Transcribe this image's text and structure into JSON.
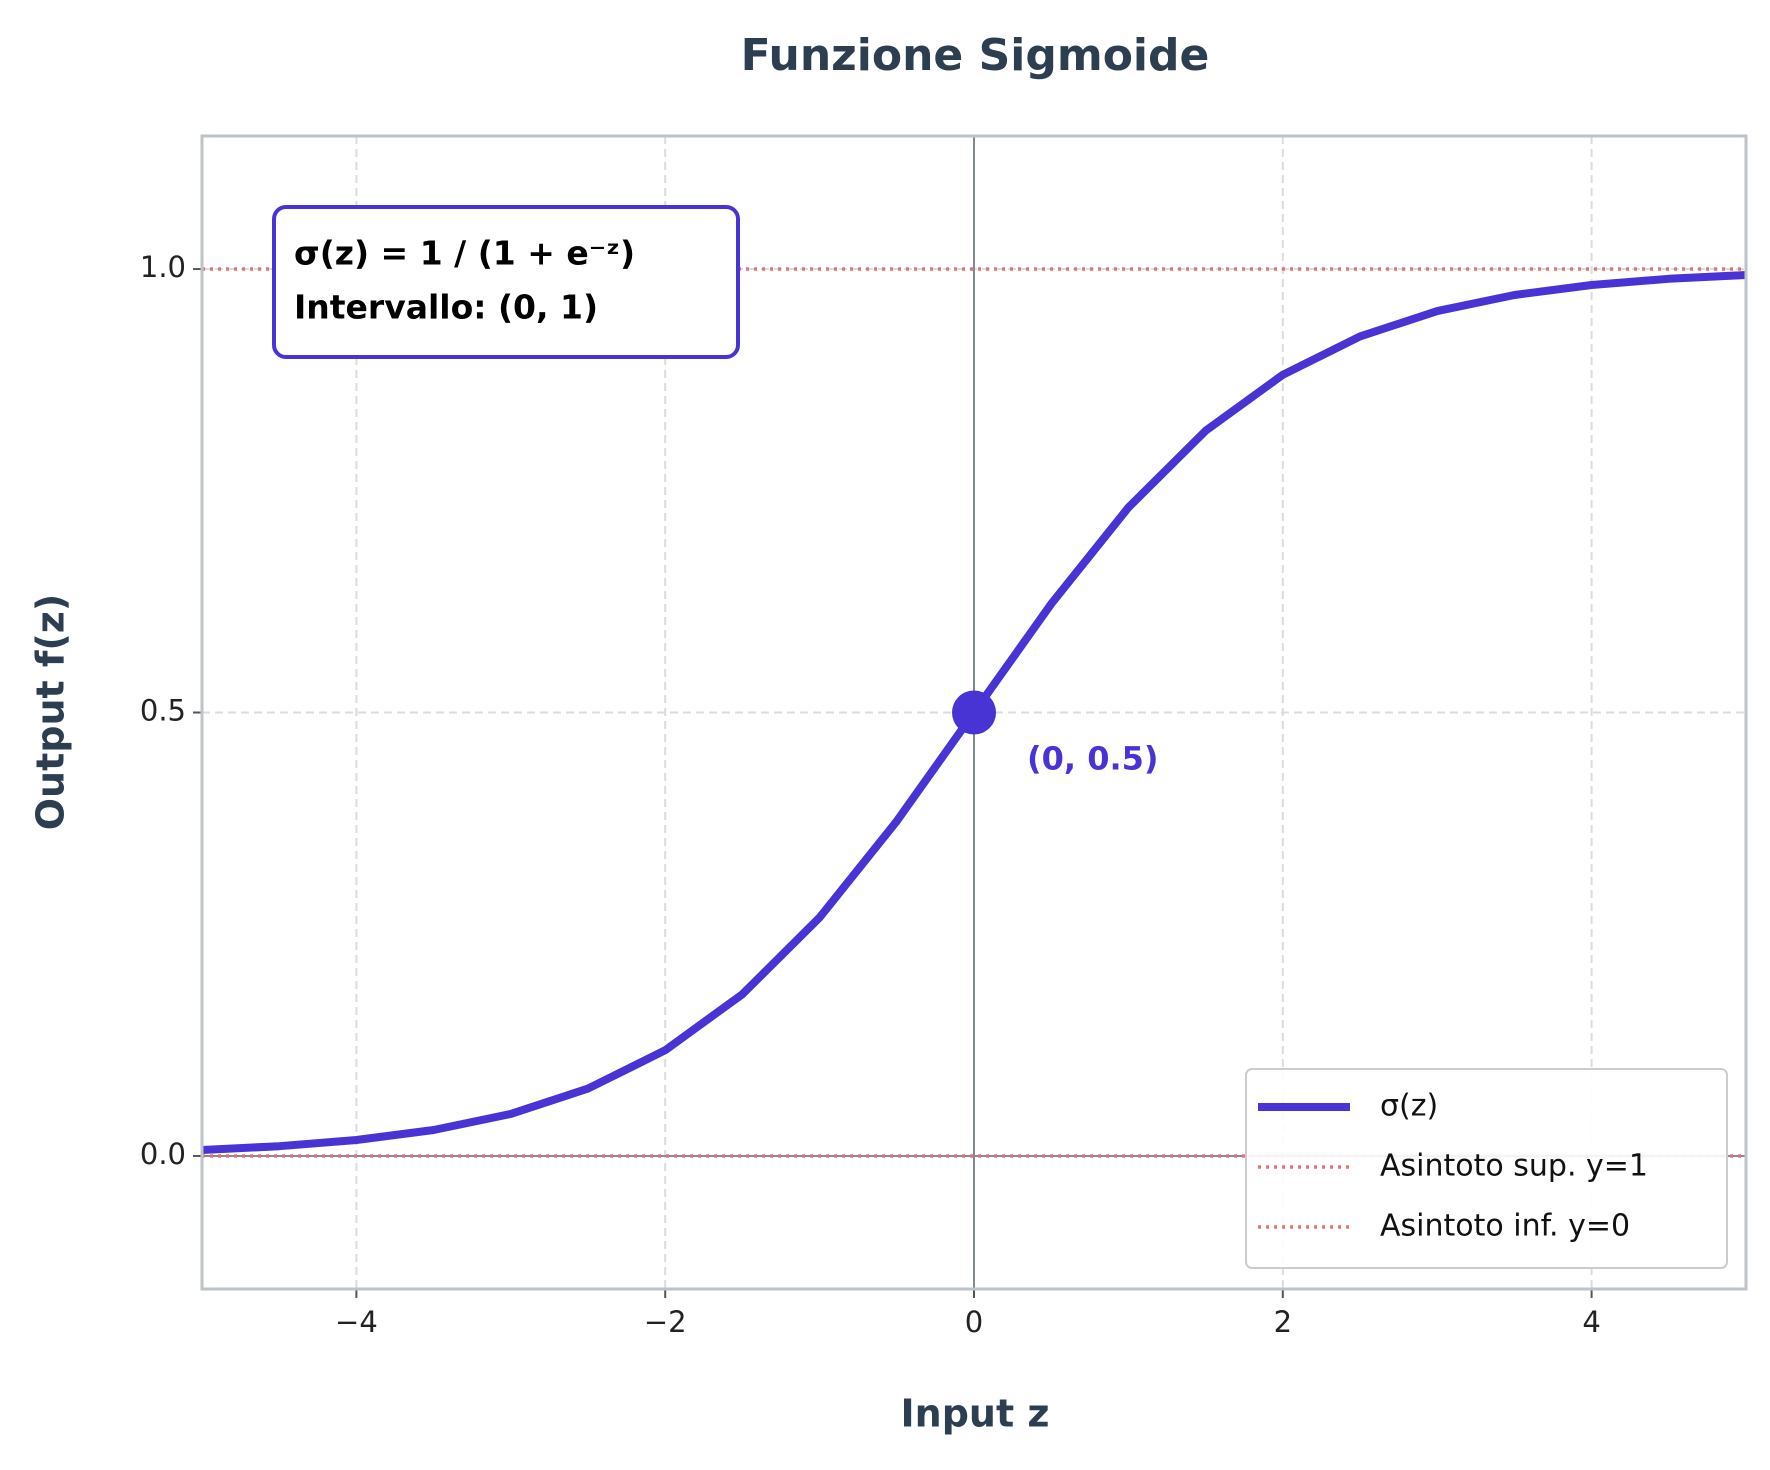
{
  "chart_data": {
    "type": "line",
    "title": "Funzione Sigmoide",
    "xlabel": "Input z",
    "ylabel": "Output f(z)",
    "x": [
      -5,
      -4.5,
      -4,
      -3.5,
      -3,
      -2.5,
      -2,
      -1.5,
      -1,
      -0.5,
      0,
      0.5,
      1,
      1.5,
      2,
      2.5,
      3,
      3.5,
      4,
      4.5,
      5
    ],
    "series": [
      {
        "name": "σ(z)",
        "color": "#4834d4",
        "values": [
          0.0067,
          0.011,
          0.018,
          0.0293,
          0.0474,
          0.0759,
          0.1192,
          0.1824,
          0.2689,
          0.3775,
          0.5,
          0.6225,
          0.7311,
          0.8176,
          0.8808,
          0.9241,
          0.9526,
          0.9707,
          0.982,
          0.989,
          0.9933
        ]
      }
    ],
    "reference_lines": [
      {
        "name": "Asintoto sup. y=1",
        "y": 1,
        "color": "#e57373"
      },
      {
        "name": "Asintoto inf. y=0",
        "y": 0,
        "color": "#e57373"
      }
    ],
    "annotations": [
      {
        "text": "(0, 0.5)",
        "x": 0,
        "y": 0.5
      }
    ],
    "text_box": [
      "σ(z) = 1 / (1 + e⁻ᶻ)",
      "Intervallo: (0, 1)"
    ],
    "xlim": [
      -5,
      5
    ],
    "ylim": [
      -0.15,
      1.15
    ],
    "xticks": [
      {
        "value": -4,
        "label": "−4"
      },
      {
        "value": -2,
        "label": "−2"
      },
      0,
      2,
      4
    ],
    "yticks": [
      {
        "value": 0,
        "label": "0.0"
      },
      0.5,
      {
        "value": 1,
        "label": "1.0"
      }
    ],
    "grid": true,
    "legend": "lower right"
  }
}
